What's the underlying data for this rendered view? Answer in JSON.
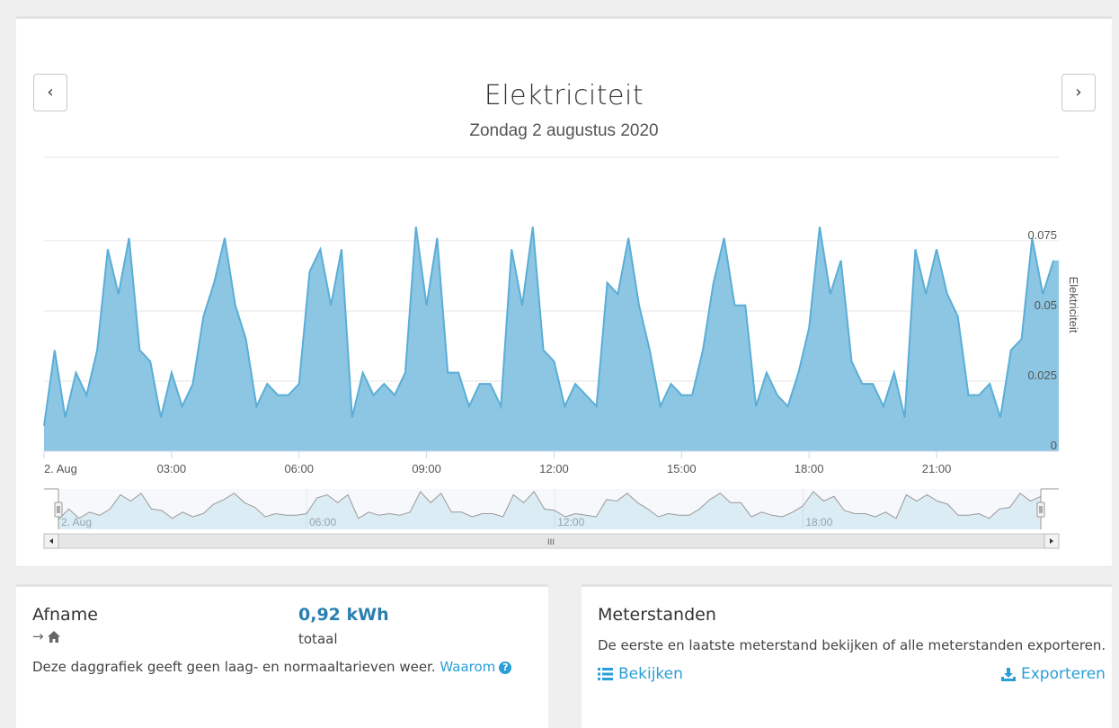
{
  "chart": {
    "title": "Elektriciteit",
    "subtitle": "Zondag 2 augustus 2020",
    "prev_icon": "‹",
    "next_icon": "›",
    "nav_scroll_grip": "III"
  },
  "chart_data": {
    "type": "area",
    "title": "Elektriciteit",
    "subtitle": "Zondag 2 augustus 2020",
    "ylabel": "Elektriciteit",
    "xlabel": "",
    "ylim": [
      0,
      0.08
    ],
    "y_ticks": [
      "0",
      "0.025",
      "0.05",
      "0.075"
    ],
    "x_tick_labels": [
      "2. Aug",
      "03:00",
      "06:00",
      "09:00",
      "12:00",
      "15:00",
      "18:00",
      "21:00"
    ],
    "navigator_labels": [
      "2. Aug",
      "06:00",
      "12:00",
      "18:00"
    ],
    "interval_minutes": 15,
    "values": [
      0.009,
      0.036,
      0.012,
      0.028,
      0.02,
      0.036,
      0.072,
      0.056,
      0.076,
      0.036,
      0.032,
      0.012,
      0.028,
      0.016,
      0.024,
      0.048,
      0.06,
      0.076,
      0.052,
      0.04,
      0.016,
      0.024,
      0.02,
      0.02,
      0.024,
      0.064,
      0.072,
      0.052,
      0.072,
      0.012,
      0.028,
      0.02,
      0.024,
      0.02,
      0.028,
      0.08,
      0.052,
      0.076,
      0.028,
      0.028,
      0.016,
      0.024,
      0.024,
      0.016,
      0.072,
      0.052,
      0.08,
      0.036,
      0.032,
      0.016,
      0.024,
      0.02,
      0.016,
      0.06,
      0.056,
      0.076,
      0.052,
      0.036,
      0.016,
      0.024,
      0.02,
      0.02,
      0.036,
      0.06,
      0.076,
      0.052,
      0.052,
      0.016,
      0.028,
      0.02,
      0.016,
      0.028,
      0.044,
      0.08,
      0.056,
      0.068,
      0.032,
      0.024,
      0.024,
      0.016,
      0.028,
      0.012,
      0.072,
      0.056,
      0.072,
      0.056,
      0.048,
      0.02,
      0.02,
      0.024,
      0.012,
      0.036,
      0.04,
      0.076,
      0.056,
      0.068
    ],
    "color": "#5aaed6",
    "fill": "#8cc6e3"
  },
  "afname": {
    "title": "Afname",
    "value": "0,92 kWh",
    "value_label": "totaal",
    "arrow_icon": "→",
    "description": "Deze daggrafiek geeft geen laag- en normaaltarieven weer.",
    "link": "Waarom",
    "help_icon": "?"
  },
  "meterstanden": {
    "title": "Meterstanden",
    "description": "De eerste en laatste meterstand bekijken of alle meterstanden exporteren.",
    "view_label": "Bekijken",
    "export_label": "Exporteren"
  },
  "colors": {
    "accent": "#2a9fd6",
    "area_line": "#5aaed6",
    "area_fill": "#8cc6e3"
  }
}
